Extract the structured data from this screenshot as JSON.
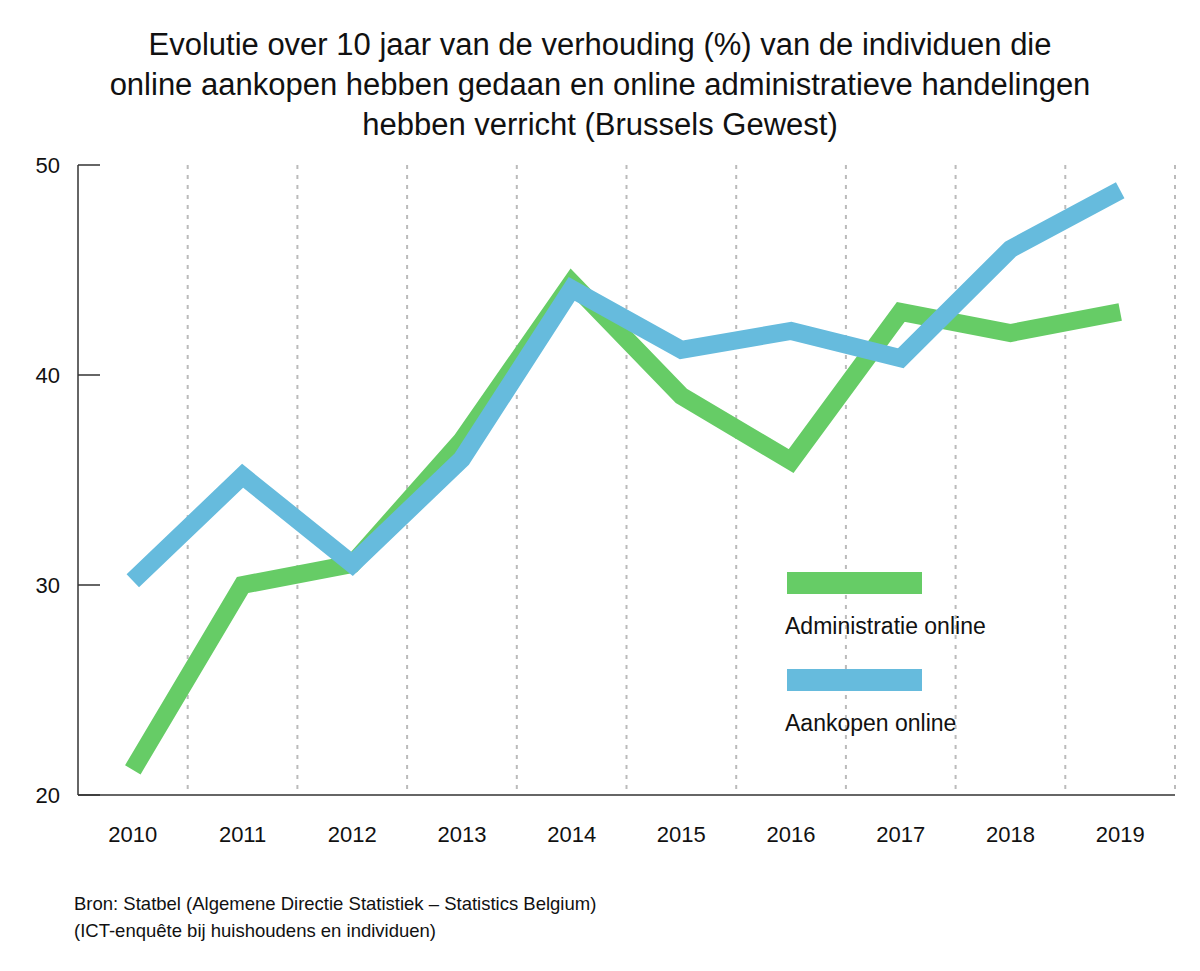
{
  "chart_data": {
    "type": "line",
    "title": "Evolutie over 10 jaar van de verhouding (%) van de individuen die online aankopen hebben gedaan en online administratieve handelingen hebben verricht (Brussels Gewest)",
    "source": [
      "Bron: Statbel (Algemene Directie Statistiek – Statistics Belgium)",
      "(ICT-enquête bij huishoudens en individuen)"
    ],
    "categories": [
      "2010",
      "2011",
      "2012",
      "2013",
      "2014",
      "2015",
      "2016",
      "2017",
      "2018",
      "2019"
    ],
    "series": [
      {
        "name": "Administratie online",
        "color": "#66cc66",
        "values": [
          21.2,
          30.0,
          31.0,
          36.9,
          44.4,
          39.0,
          35.9,
          43.0,
          42.0,
          43.0
        ]
      },
      {
        "name": "Aankopen online",
        "color": "#66bbdd",
        "values": [
          30.2,
          35.2,
          31.0,
          36.0,
          44.1,
          41.2,
          42.1,
          40.8,
          46.0,
          48.8
        ]
      }
    ],
    "ylim": [
      20,
      50
    ],
    "yticks": [
      20,
      30,
      40,
      50
    ],
    "grid": true,
    "legend": "lower right"
  }
}
